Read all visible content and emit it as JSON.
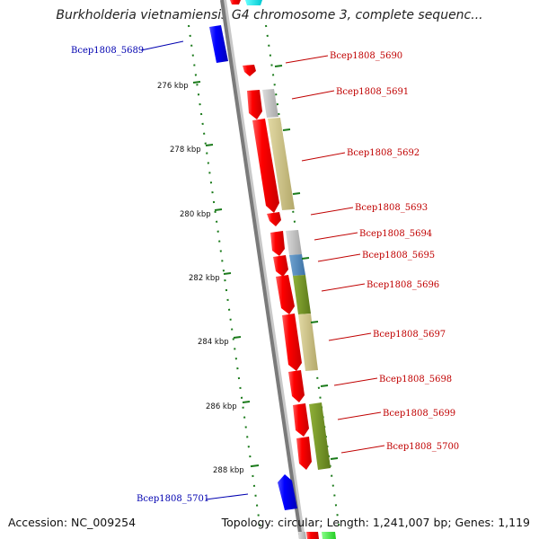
{
  "title": "Burkholderia vietnamiensis G4 chromosome 3, complete sequenc...",
  "footer": {
    "accession": "Accession: NC_009254",
    "summary": "Topology: circular; Length: 1,241,007 bp; Genes: 1,119"
  },
  "colors": {
    "backbone": "#7a7a7a",
    "forward_gene": "#ff0000",
    "reverse_gene": "#0000ff",
    "ticks": "#1a7a1a",
    "label_forward": "#c00000",
    "label_reverse": "#0000b0",
    "cog_khaki": "#c8be82",
    "cog_gray": "#bdbdbd",
    "cog_olive": "#6f8f22",
    "cog_steel": "#4f86b8"
  },
  "kbp_labels": [
    "276 kbp",
    "278 kbp",
    "280 kbp",
    "282 kbp",
    "284 kbp",
    "286 kbp",
    "288 kbp"
  ],
  "gene_labels": [
    {
      "name": "Bcep1808_5689",
      "strand": "reverse"
    },
    {
      "name": "Bcep1808_5690",
      "strand": "forward"
    },
    {
      "name": "Bcep1808_5691",
      "strand": "forward"
    },
    {
      "name": "Bcep1808_5692",
      "strand": "forward"
    },
    {
      "name": "Bcep1808_5693",
      "strand": "forward"
    },
    {
      "name": "Bcep1808_5694",
      "strand": "forward"
    },
    {
      "name": "Bcep1808_5695",
      "strand": "forward"
    },
    {
      "name": "Bcep1808_5696",
      "strand": "forward"
    },
    {
      "name": "Bcep1808_5697",
      "strand": "forward"
    },
    {
      "name": "Bcep1808_5698",
      "strand": "forward"
    },
    {
      "name": "Bcep1808_5699",
      "strand": "forward"
    },
    {
      "name": "Bcep1808_5700",
      "strand": "forward"
    },
    {
      "name": "Bcep1808_5701",
      "strand": "reverse"
    }
  ]
}
